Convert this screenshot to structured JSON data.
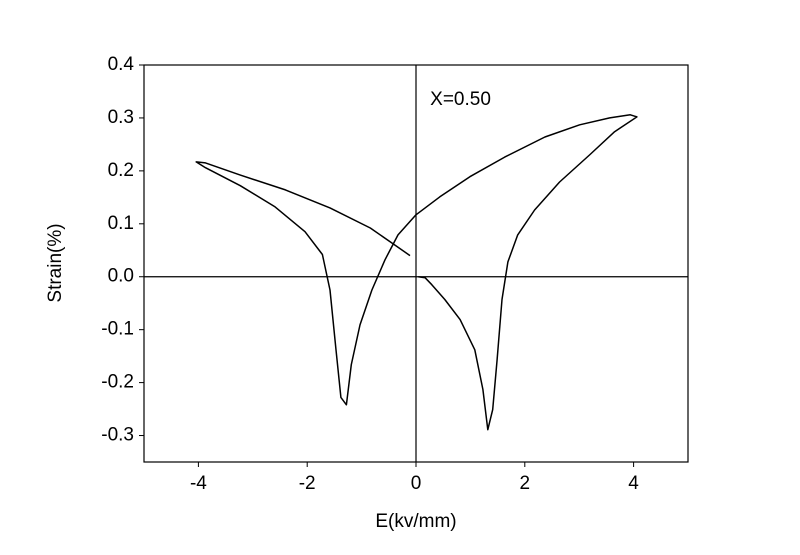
{
  "chart_data": {
    "type": "line",
    "xlabel": "E(kv/mm)",
    "ylabel": "Strain(%)",
    "annotation": {
      "text": "X=0.50",
      "x": 0.26,
      "y": 0.334
    },
    "xlim": [
      -5,
      5
    ],
    "ylim": [
      -0.35,
      0.4
    ],
    "xticks": [
      -4,
      -2,
      0,
      2,
      4
    ],
    "yticks": [
      -0.3,
      -0.2,
      -0.1,
      {
        "value": 0,
        "label": "0.0"
      },
      0.1,
      0.2,
      0.3,
      0.4
    ],
    "zero_lines": true,
    "color": "#000000",
    "x": [
      0.04,
      0.17,
      0.29,
      0.53,
      0.81,
      1.08,
      1.23,
      1.32,
      1.41,
      1.49,
      1.58,
      1.69,
      1.87,
      2.18,
      2.64,
      3.19,
      3.65,
      4.06,
      3.94,
      3.56,
      3.01,
      2.37,
      1.63,
      0.99,
      0.44,
      0,
      -0.33,
      -0.57,
      -0.81,
      -1.03,
      -1.19,
      -1.28,
      -1.38,
      -1.47,
      -1.58,
      -1.72,
      -2.04,
      -2.59,
      -3.23,
      -3.87,
      -4.04,
      -3.87,
      -3.23,
      -2.4,
      -1.58,
      -0.84,
      -0.39,
      -0.11
    ],
    "values": [
      0.0,
      -0.002,
      -0.015,
      -0.043,
      -0.081,
      -0.138,
      -0.213,
      -0.289,
      -0.251,
      -0.157,
      -0.043,
      0.028,
      0.079,
      0.126,
      0.179,
      0.23,
      0.274,
      0.302,
      0.306,
      0.3,
      0.287,
      0.264,
      0.226,
      0.189,
      0.151,
      0.117,
      0.079,
      0.032,
      -0.025,
      -0.091,
      -0.166,
      -0.242,
      -0.228,
      -0.138,
      -0.025,
      0.042,
      0.085,
      0.132,
      0.172,
      0.206,
      0.217,
      0.215,
      0.192,
      0.164,
      0.13,
      0.092,
      0.06,
      0.04
    ]
  }
}
